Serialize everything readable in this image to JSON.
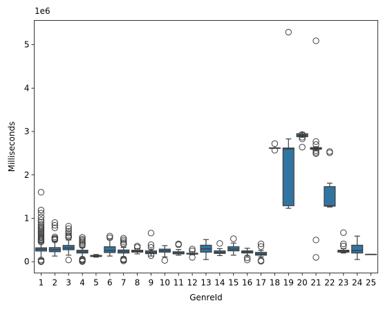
{
  "chart_data": {
    "type": "box",
    "xlabel": "GenreId",
    "ylabel": "Milliseconds",
    "y_offset_text": "1e6",
    "ylim": [
      -260000,
      5560000
    ],
    "yticks": [
      0,
      1000000,
      2000000,
      3000000,
      4000000,
      5000000
    ],
    "ytick_labels": [
      "0",
      "1",
      "2",
      "3",
      "4",
      "5"
    ],
    "box_color": "#3274a1",
    "categories": [
      "1",
      "2",
      "3",
      "4",
      "5",
      "6",
      "7",
      "8",
      "9",
      "10",
      "11",
      "12",
      "13",
      "14",
      "15",
      "16",
      "17",
      "18",
      "19",
      "20",
      "21",
      "22",
      "23",
      "24",
      "25"
    ],
    "boxes": [
      {
        "category": "1",
        "whislo": 60000,
        "q1": 245000,
        "median": 285000,
        "q3": 320000,
        "whishi": 440000,
        "fliers": [
          1600000,
          1190000,
          1120000,
          1030000,
          960000,
          910000,
          860000,
          820000,
          790000,
          760000,
          730000,
          700000,
          670000,
          640000,
          610000,
          580000,
          555000,
          530000,
          505000,
          480000,
          455000,
          40000,
          15000,
          0
        ]
      },
      {
        "category": "2",
        "whislo": 130000,
        "q1": 230000,
        "median": 275000,
        "q3": 325000,
        "whishi": 470000,
        "fliers": [
          900000,
          840000,
          780000,
          570000,
          540000,
          520000,
          500000
        ]
      },
      {
        "category": "3",
        "whislo": 150000,
        "q1": 275000,
        "median": 315000,
        "q3": 375000,
        "whishi": 500000,
        "fliers": [
          820000,
          760000,
          700000,
          660000,
          610000,
          580000,
          560000,
          40000
        ]
      },
      {
        "category": "4",
        "whislo": 80000,
        "q1": 200000,
        "median": 230000,
        "q3": 265000,
        "whishi": 330000,
        "fliers": [
          560000,
          520000,
          490000,
          460000,
          430000,
          400000,
          370000,
          60000,
          40000,
          20000,
          5000
        ]
      },
      {
        "category": "5",
        "whislo": 105000,
        "q1": 120000,
        "median": 135000,
        "q3": 145000,
        "whishi": 165000,
        "fliers": []
      },
      {
        "category": "6",
        "whislo": 130000,
        "q1": 210000,
        "median": 255000,
        "q3": 345000,
        "whishi": 520000,
        "fliers": [
          590000,
          550000
        ]
      },
      {
        "category": "7",
        "whislo": 110000,
        "q1": 200000,
        "median": 235000,
        "q3": 270000,
        "whishi": 330000,
        "fliers": [
          540000,
          500000,
          460000,
          420000,
          400000,
          60000,
          40000,
          20000
        ]
      },
      {
        "category": "8",
        "whislo": 180000,
        "q1": 220000,
        "median": 240000,
        "q3": 265000,
        "whishi": 300000,
        "fliers": [
          360000,
          330000
        ]
      },
      {
        "category": "9",
        "whislo": 130000,
        "q1": 185000,
        "median": 215000,
        "q3": 250000,
        "whishi": 290000,
        "fliers": [
          660000,
          390000,
          330000,
          140000
        ]
      },
      {
        "category": "10",
        "whislo": 110000,
        "q1": 220000,
        "median": 255000,
        "q3": 290000,
        "whishi": 370000,
        "fliers": [
          30000
        ]
      },
      {
        "category": "11",
        "whislo": 150000,
        "q1": 180000,
        "median": 200000,
        "q3": 230000,
        "whishi": 280000,
        "fliers": [
          410000,
          390000
        ]
      },
      {
        "category": "12",
        "whislo": 160000,
        "q1": 175000,
        "median": 185000,
        "q3": 195000,
        "whishi": 230000,
        "fliers": [
          290000,
          250000,
          100000
        ]
      },
      {
        "category": "13",
        "whislo": 50000,
        "q1": 220000,
        "median": 295000,
        "q3": 380000,
        "whishi": 510000,
        "fliers": []
      },
      {
        "category": "14",
        "whislo": 140000,
        "q1": 190000,
        "median": 215000,
        "q3": 250000,
        "whishi": 300000,
        "fliers": [
          420000
        ]
      },
      {
        "category": "15",
        "whislo": 150000,
        "q1": 250000,
        "median": 290000,
        "q3": 345000,
        "whishi": 430000,
        "fliers": [
          530000
        ]
      },
      {
        "category": "16",
        "whislo": 130000,
        "q1": 200000,
        "median": 225000,
        "q3": 250000,
        "whishi": 310000,
        "fliers": [
          90000,
          40000
        ]
      },
      {
        "category": "17",
        "whislo": 110000,
        "q1": 150000,
        "median": 175000,
        "q3": 215000,
        "whishi": 260000,
        "fliers": [
          410000,
          350000,
          30000,
          10000
        ]
      },
      {
        "category": "18",
        "whislo": 2620000,
        "q1": 2620000,
        "median": 2620000,
        "q3": 2620000,
        "whishi": 2620000,
        "fliers": [
          2720000,
          2570000
        ]
      },
      {
        "category": "19",
        "whislo": 1230000,
        "q1": 1290000,
        "median": 2600000,
        "q3": 2620000,
        "whishi": 2830000,
        "fliers": [
          5290000
        ]
      },
      {
        "category": "20",
        "whislo": 2870000,
        "q1": 2880000,
        "median": 2910000,
        "q3": 2950000,
        "whishi": 2980000,
        "fliers": [
          2930000,
          2870000,
          2830000,
          2640000
        ]
      },
      {
        "category": "21",
        "whislo": 2570000,
        "q1": 2590000,
        "median": 2610000,
        "q3": 2630000,
        "whishi": 2650000,
        "fliers": [
          5090000,
          2770000,
          2700000,
          2560000,
          2520000,
          2490000,
          500000,
          100000
        ]
      },
      {
        "category": "22",
        "whislo": 1260000,
        "q1": 1280000,
        "median": 1290000,
        "q3": 1730000,
        "whishi": 1810000,
        "fliers": [
          2540000,
          2510000
        ]
      },
      {
        "category": "23",
        "whislo": 200000,
        "q1": 220000,
        "median": 240000,
        "q3": 265000,
        "whishi": 300000,
        "fliers": [
          670000,
          410000,
          360000
        ]
      },
      {
        "category": "24",
        "whislo": 50000,
        "q1": 200000,
        "median": 255000,
        "q3": 380000,
        "whishi": 590000,
        "fliers": []
      },
      {
        "category": "25",
        "whislo": 170000,
        "q1": 170000,
        "median": 170000,
        "q3": 170000,
        "whishi": 170000,
        "fliers": []
      }
    ]
  }
}
